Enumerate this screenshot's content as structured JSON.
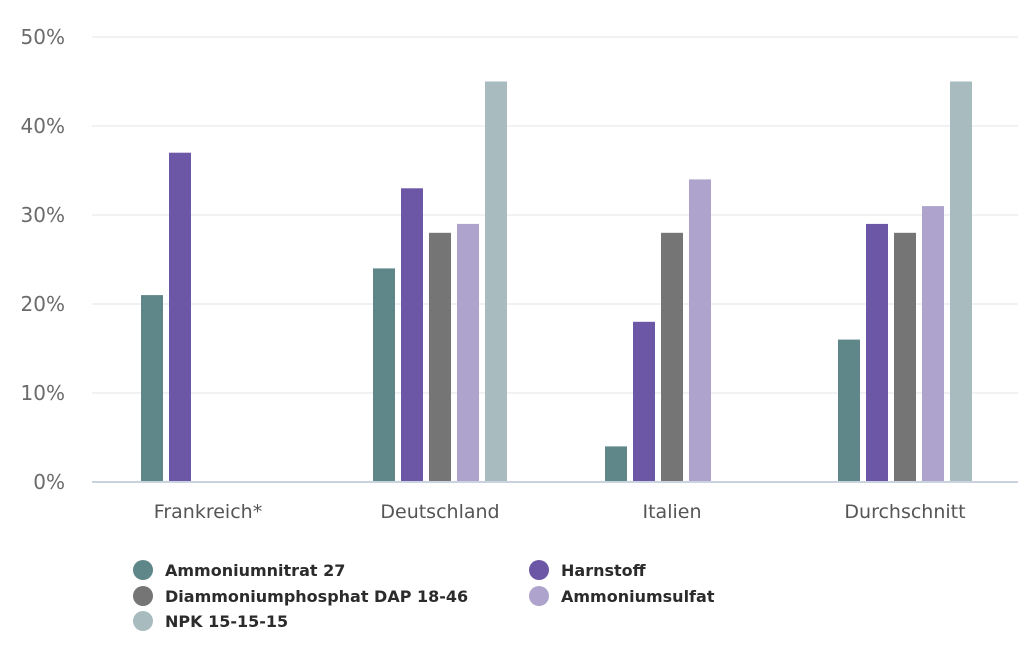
{
  "chart_data": {
    "type": "bar",
    "categories": [
      "Frankreich*",
      "Deutschland",
      "Italien",
      "Durchschnitt"
    ],
    "series": [
      {
        "name": "Ammoniumnitrat 27",
        "color": "#5f878a",
        "values": [
          21,
          24,
          4,
          16
        ]
      },
      {
        "name": "Harnstoff",
        "color": "#6b57a5",
        "values": [
          37,
          33,
          18,
          29
        ]
      },
      {
        "name": "Diammoniumphosphat DAP 18-46",
        "color": "#757575",
        "values": [
          null,
          28,
          28,
          28
        ]
      },
      {
        "name": "Ammoniumsulfat",
        "color": "#ada3cc",
        "values": [
          null,
          29,
          34,
          31
        ]
      },
      {
        "name": "NPK 15-15-15",
        "color": "#a8bcc0",
        "values": [
          null,
          45,
          null,
          45
        ]
      }
    ],
    "yticks": [
      "0%",
      "10%",
      "20%",
      "30%",
      "40%",
      "50%"
    ],
    "ylim": [
      0,
      50
    ],
    "grid": true,
    "legend_position": "bottom"
  }
}
